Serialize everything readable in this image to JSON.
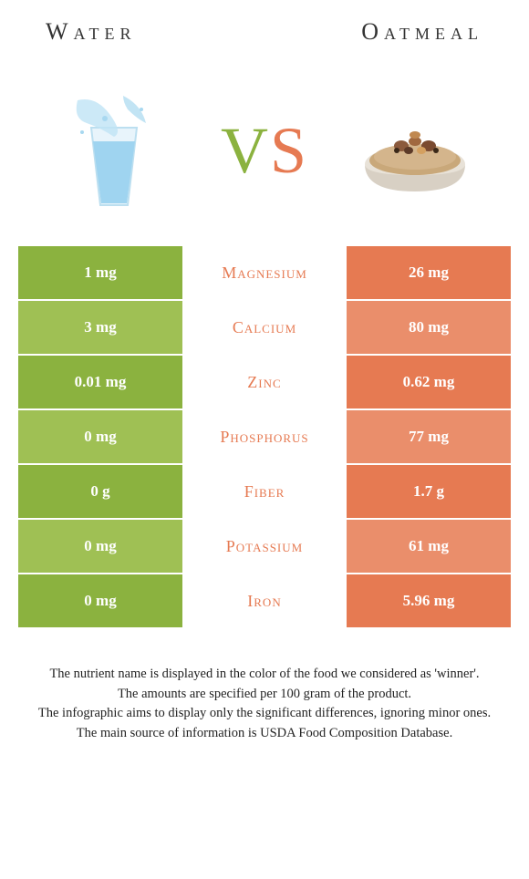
{
  "header": {
    "left_title": "Water",
    "right_title": "Oatmeal",
    "vs_v": "V",
    "vs_s": "S"
  },
  "colors": {
    "left": "#8bb23f",
    "right": "#e67a52",
    "left_alt": "#9fc054",
    "right_alt": "#ea8e6b",
    "mid_text_left": "#8bb23f",
    "mid_text_right": "#e67a52",
    "row_border": "#ffffff",
    "background": "#ffffff"
  },
  "rows": [
    {
      "nutrient": "Magnesium",
      "left": "1 mg",
      "right": "26 mg",
      "winner": "right"
    },
    {
      "nutrient": "Calcium",
      "left": "3 mg",
      "right": "80 mg",
      "winner": "right"
    },
    {
      "nutrient": "Zinc",
      "left": "0.01 mg",
      "right": "0.62 mg",
      "winner": "right"
    },
    {
      "nutrient": "Phosphorus",
      "left": "0 mg",
      "right": "77 mg",
      "winner": "right"
    },
    {
      "nutrient": "Fiber",
      "left": "0 g",
      "right": "1.7 g",
      "winner": "right"
    },
    {
      "nutrient": "Potassium",
      "left": "0 mg",
      "right": "61 mg",
      "winner": "right"
    },
    {
      "nutrient": "Iron",
      "left": "0 mg",
      "right": "5.96 mg",
      "winner": "right"
    }
  ],
  "footer": [
    "The nutrient name is displayed in the color of the food we considered as 'winner'.",
    "The amounts are specified per 100 gram of the product.",
    "The infographic aims to display only the significant differences, ignoring minor ones.",
    "The main source of information is USDA Food Composition Database."
  ]
}
